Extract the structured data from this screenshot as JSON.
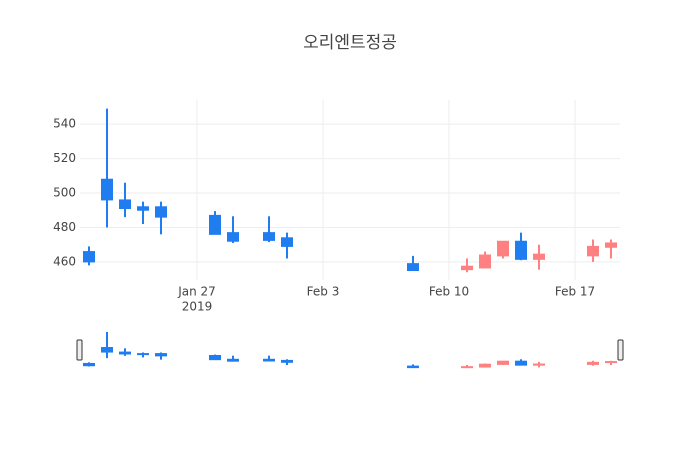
{
  "chart_data": {
    "type": "candlestick",
    "title": "오리엔트정공",
    "x": [
      "2019-01-21",
      "2019-01-22",
      "2019-01-23",
      "2019-01-24",
      "2019-01-25",
      "2019-01-28",
      "2019-01-29",
      "2019-01-31",
      "2019-02-01",
      "2019-02-08",
      "2019-02-11",
      "2019-02-12",
      "2019-02-13",
      "2019-02-14",
      "2019-02-15",
      "2019-02-18",
      "2019-02-19"
    ],
    "open": [
      466,
      508,
      496,
      492,
      492,
      487,
      477,
      477,
      474,
      459,
      455.5,
      456.5,
      463.5,
      472,
      461.5,
      463.5,
      468.5
    ],
    "high": [
      469,
      549,
      506,
      495,
      495,
      489.5,
      486.5,
      486.5,
      477,
      463.5,
      462,
      466,
      472,
      477,
      470,
      473,
      473
    ],
    "low": [
      458,
      480,
      486,
      482,
      476,
      476,
      471,
      471.5,
      462,
      455,
      454,
      456.5,
      462,
      461,
      455.5,
      460,
      462
    ],
    "close": [
      460,
      496,
      491,
      490,
      486,
      476,
      472,
      472.5,
      469,
      455,
      457.5,
      464,
      472,
      461.5,
      464.5,
      469,
      471
    ],
    "increasing_color": "#ff8080",
    "decreasing_color": "#1f7df0",
    "xlim": [
      "2019-01-20T12:00",
      "2019-02-19T12:00"
    ],
    "xticks": [
      {
        "value": "2019-01-27",
        "label": "Jan 27"
      },
      {
        "value": "2019-02-03",
        "label": "Feb 3"
      },
      {
        "value": "2019-02-10",
        "label": "Feb 10"
      },
      {
        "value": "2019-02-17",
        "label": "Feb 17"
      }
    ],
    "xtick_year": "2019",
    "ylim": [
      449.5,
      554
    ],
    "yticks": [
      460,
      480,
      500,
      520,
      540
    ],
    "grid": true,
    "rangeslider": true
  }
}
